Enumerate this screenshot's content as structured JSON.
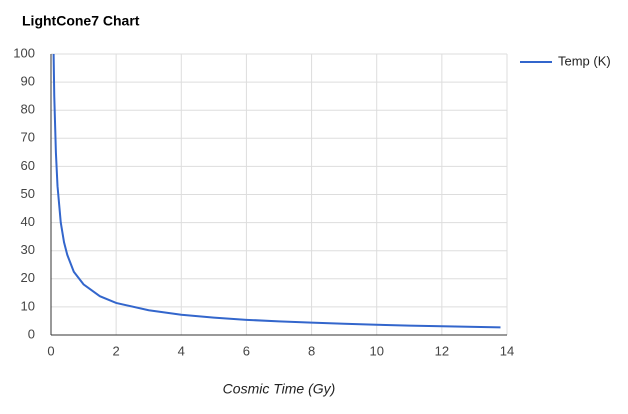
{
  "chart_data": {
    "type": "line",
    "title": "LightCone7 Chart",
    "x_label": "Cosmic Time (Gy)",
    "x": [
      0.08,
      0.1,
      0.15,
      0.2,
      0.3,
      0.4,
      0.5,
      0.7,
      1,
      1.5,
      2,
      3,
      4,
      5,
      6,
      7,
      8,
      9,
      10,
      11,
      12,
      13,
      13.8
    ],
    "series": [
      {
        "name": "Temp (K)",
        "color": "#3366cc",
        "values": [
          100,
          85,
          65,
          53,
          40,
          33,
          28.5,
          22.5,
          18,
          13.8,
          11.4,
          8.8,
          7.2,
          6.2,
          5.4,
          4.85,
          4.4,
          4.0,
          3.65,
          3.35,
          3.1,
          2.88,
          2.73
        ]
      }
    ],
    "xlim": [
      0,
      14
    ],
    "xticks": [
      0,
      2,
      4,
      6,
      8,
      10,
      12,
      14
    ],
    "ylim": [
      0,
      100
    ],
    "yticks": [
      0,
      10,
      20,
      30,
      40,
      50,
      60,
      70,
      80,
      90,
      100
    ],
    "grid": true,
    "legend": "right"
  }
}
